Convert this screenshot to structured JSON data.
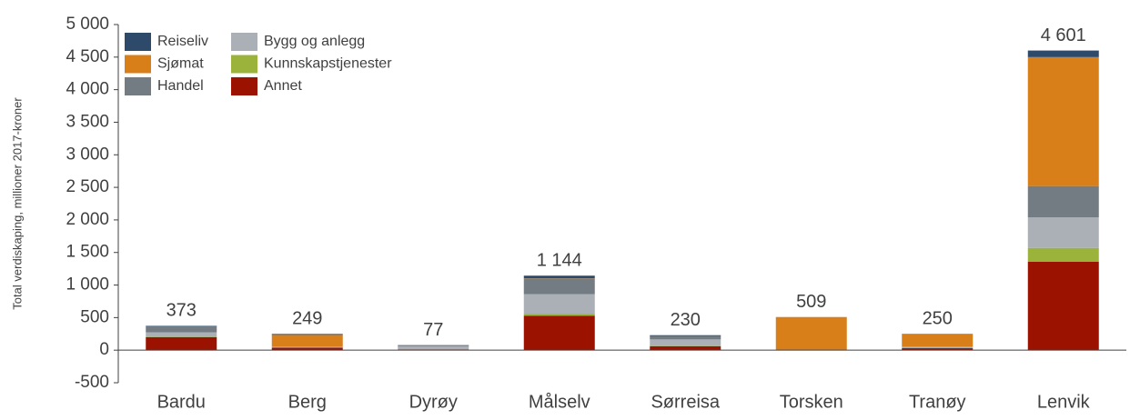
{
  "chart_data": {
    "type": "bar",
    "stacked": true,
    "y_label": "Total verdiskaping, millioner 2017-kroner",
    "categories": [
      "Bardu",
      "Berg",
      "Dyrøy",
      "Målselv",
      "Sørreisa",
      "Torsken",
      "Tranøy",
      "Lenvik"
    ],
    "series": [
      {
        "name": "Annet",
        "color": "#9b1300",
        "values": [
          200,
          40,
          10,
          530,
          60,
          5,
          30,
          1360
        ]
      },
      {
        "name": "Kunnskapstjenester",
        "color": "#9bb33b",
        "values": [
          5,
          0,
          0,
          30,
          5,
          0,
          0,
          210
        ]
      },
      {
        "name": "Bygg og anlegg",
        "color": "#aab0b6",
        "values": [
          70,
          10,
          50,
          300,
          100,
          0,
          20,
          470
        ]
      },
      {
        "name": "Handel",
        "color": "#737b83",
        "values": [
          90,
          5,
          12,
          240,
          50,
          4,
          5,
          480
        ]
      },
      {
        "name": "Sjømat",
        "color": "#d87f1a",
        "values": [
          0,
          180,
          0,
          4,
          0,
          500,
          190,
          1980
        ]
      },
      {
        "name": "Reiseliv",
        "color": "#2e4a6b",
        "values": [
          8,
          14,
          5,
          40,
          15,
          0,
          5,
          101
        ]
      }
    ],
    "legend_order": [
      5,
      4,
      3,
      2,
      1,
      0
    ],
    "totals": [
      373,
      249,
      77,
      1144,
      230,
      509,
      250,
      4601
    ],
    "total_labels": [
      "373",
      "249",
      "77",
      "1 144",
      "230",
      "509",
      "250",
      "4 601"
    ],
    "ylim": [
      -500,
      5000
    ],
    "yticks": [
      -500,
      0,
      500,
      {
        "value": 1000,
        "label": "1 000"
      },
      {
        "value": 1500,
        "label": "1 500"
      },
      {
        "value": 2000,
        "label": "2 000"
      },
      {
        "value": 2500,
        "label": "2 500"
      },
      {
        "value": 3000,
        "label": "3 000"
      },
      {
        "value": 3500,
        "label": "3 500"
      },
      {
        "value": 4000,
        "label": "4 000"
      },
      {
        "value": 4500,
        "label": "4 500"
      },
      {
        "value": 5000,
        "label": "5 000"
      }
    ]
  }
}
